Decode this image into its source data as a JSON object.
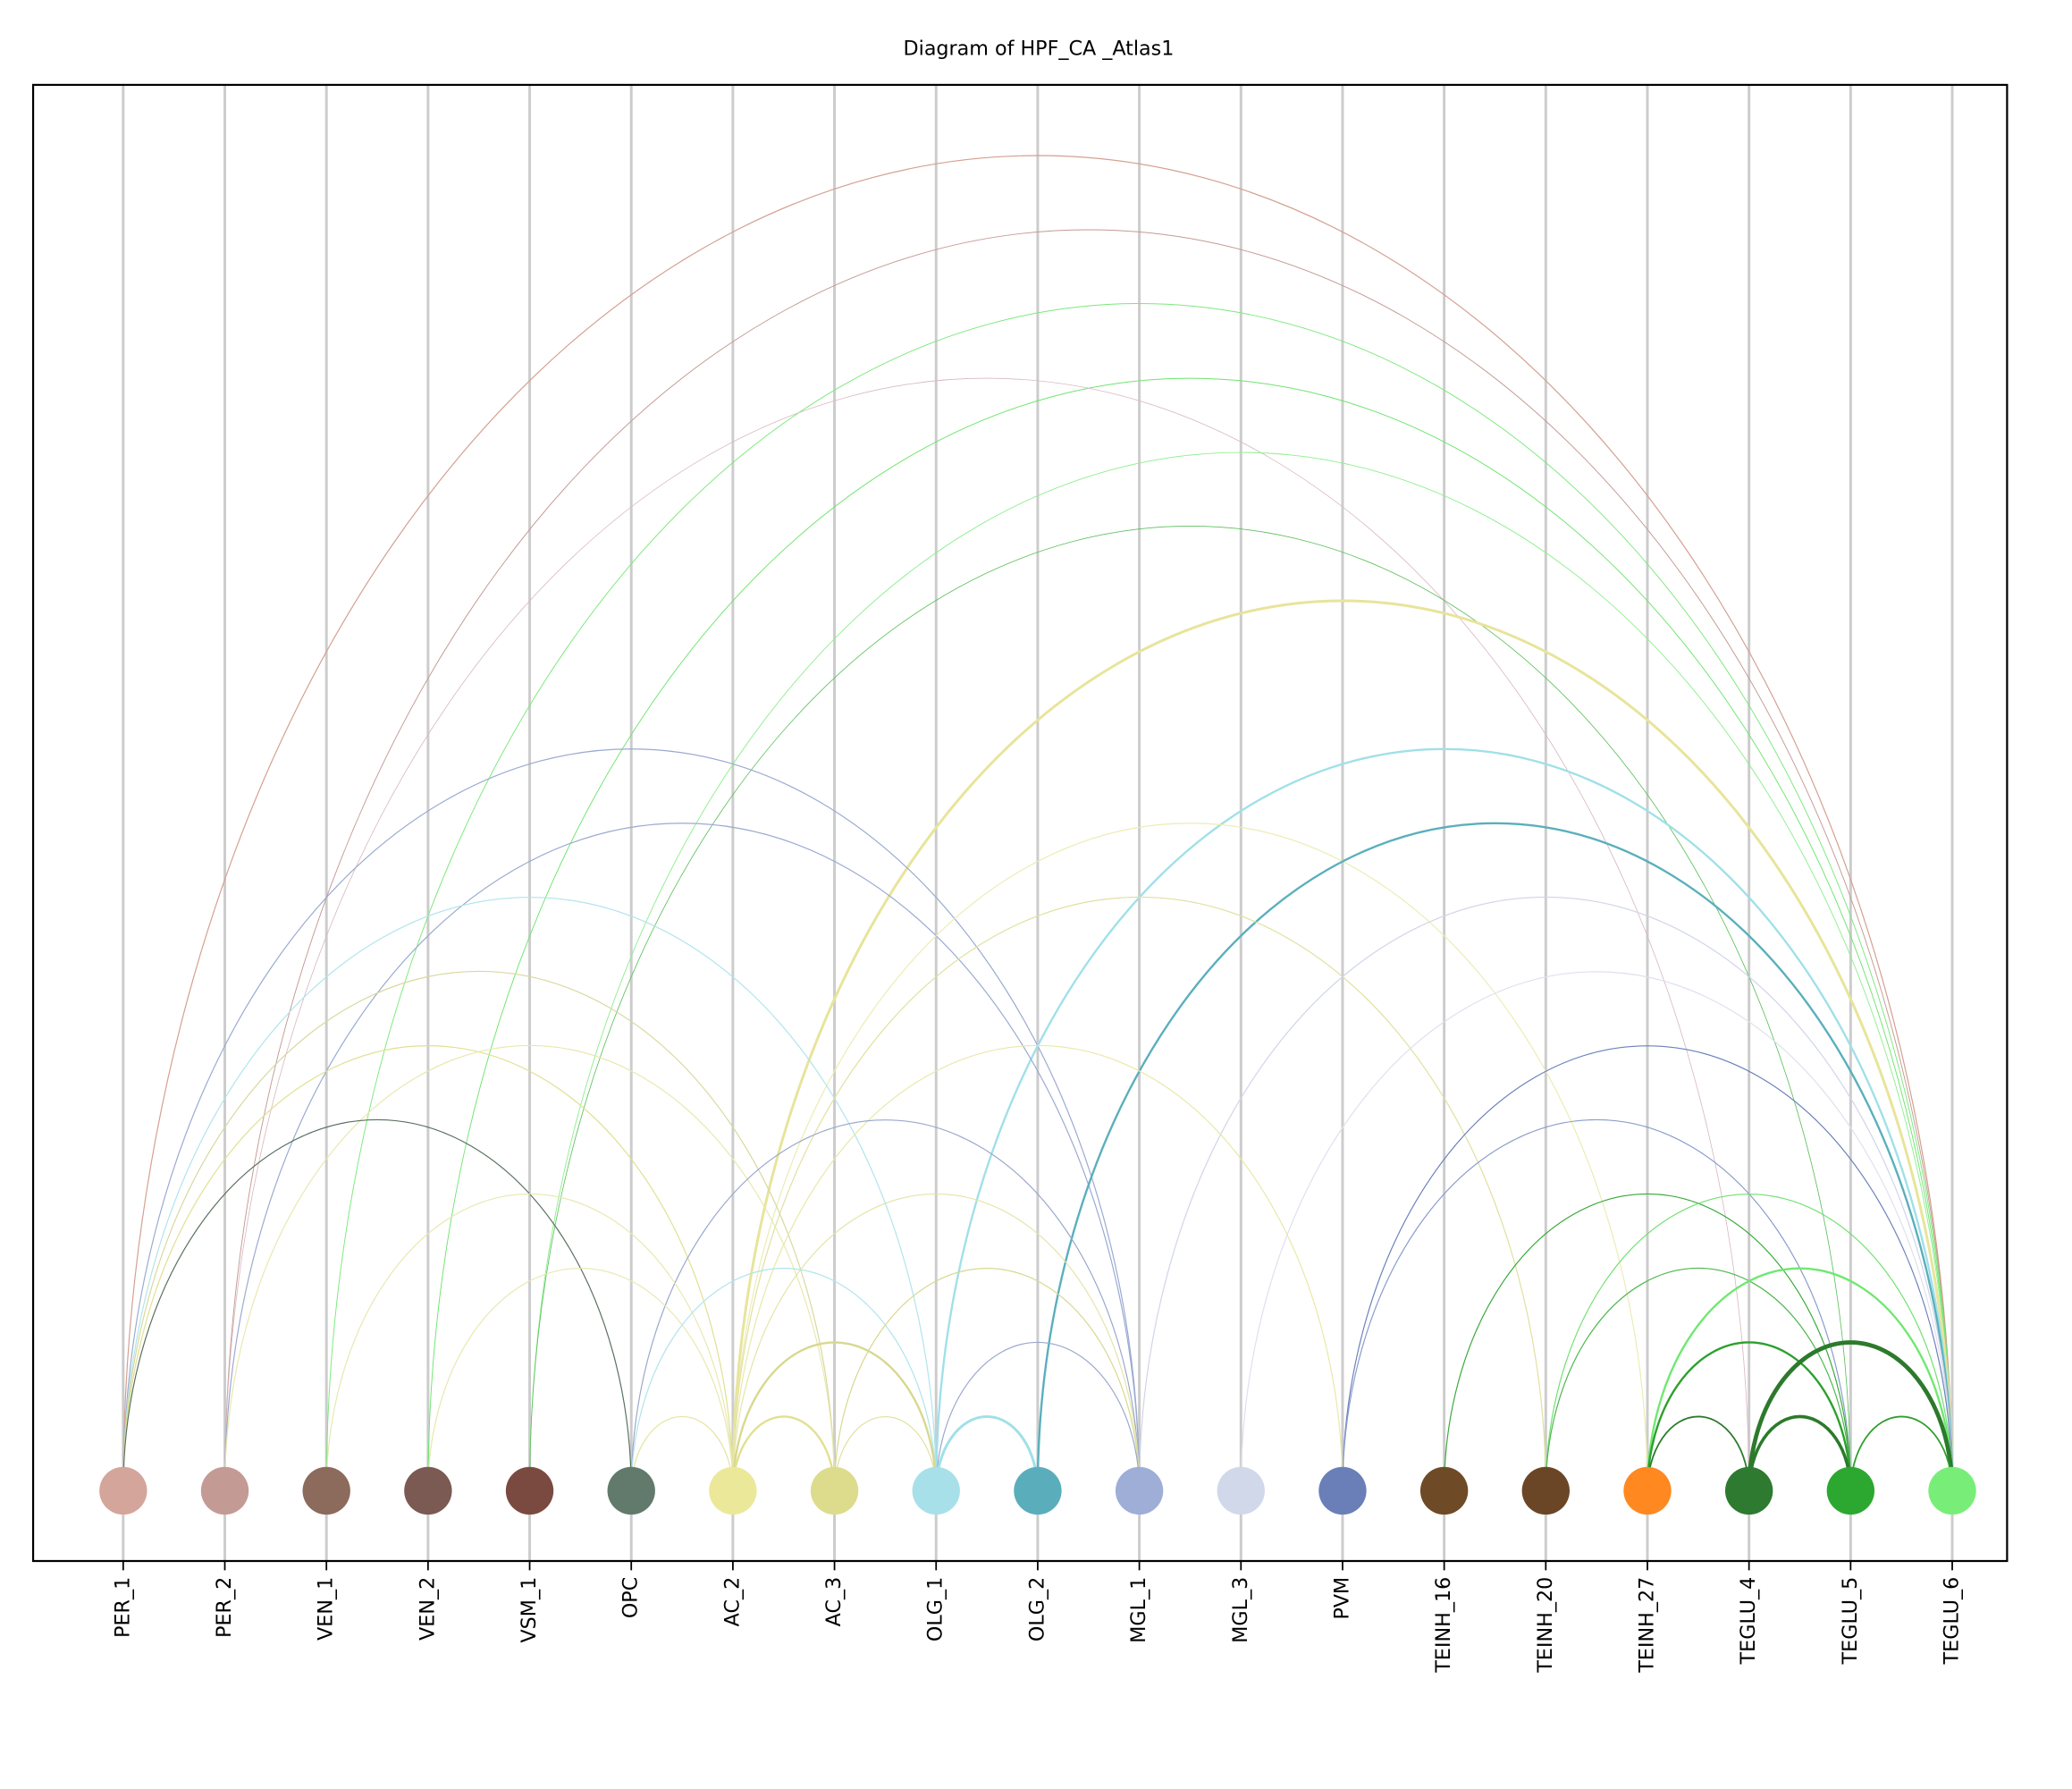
{
  "title": "Diagram of HPF_CA _Atlas1",
  "nodes": [
    {
      "label": "PER_1",
      "color": "#d4a59a"
    },
    {
      "label": "PER_2",
      "color": "#c49a94"
    },
    {
      "label": "VEN_1",
      "color": "#8c6a5c"
    },
    {
      "label": "VEN_2",
      "color": "#7a5a52"
    },
    {
      "label": "VSM_1",
      "color": "#7a4a40"
    },
    {
      "label": "OPC",
      "color": "#627a6c"
    },
    {
      "label": "AC_2",
      "color": "#ece89a"
    },
    {
      "label": "AC_3",
      "color": "#dcdc8c"
    },
    {
      "label": "OLG_1",
      "color": "#a8e0ea"
    },
    {
      "label": "OLG_2",
      "color": "#5aaebc"
    },
    {
      "label": "MGL_1",
      "color": "#9eaed6"
    },
    {
      "label": "MGL_3",
      "color": "#d0d8ea"
    },
    {
      "label": "PVM",
      "color": "#6a7eb8"
    },
    {
      "label": "TEINH_16",
      "color": "#6e4a26"
    },
    {
      "label": "TEINH_20",
      "color": "#6a4626"
    },
    {
      "label": "TEINH_27",
      "color": "#ff8820"
    },
    {
      "label": "TEGLU_4",
      "color": "#2e7a30"
    },
    {
      "label": "TEGLU_5",
      "color": "#2ca830"
    },
    {
      "label": "TEGLU_6",
      "color": "#78ee78"
    }
  ],
  "edges": [
    {
      "source": 0,
      "target": 18,
      "color": "#d4a090",
      "weight": 1
    },
    {
      "source": 1,
      "target": 18,
      "color": "#c49a94",
      "weight": 0.8
    },
    {
      "source": 2,
      "target": 18,
      "color": "#7be87b",
      "weight": 0.8
    },
    {
      "source": 3,
      "target": 18,
      "color": "#6ee46e",
      "weight": 0.8
    },
    {
      "source": 1,
      "target": 16,
      "color": "#d9b8c0",
      "weight": 0.7
    },
    {
      "source": 4,
      "target": 18,
      "color": "#90ee90",
      "weight": 0.8
    },
    {
      "source": 4,
      "target": 17,
      "color": "#5cbf5c",
      "weight": 0.7
    },
    {
      "source": 6,
      "target": 18,
      "color": "#e8e49a",
      "weight": 2.5
    },
    {
      "source": 0,
      "target": 10,
      "color": "#9aaad0",
      "weight": 1
    },
    {
      "source": 8,
      "target": 18,
      "color": "#a0e0e8",
      "weight": 2
    },
    {
      "source": 1,
      "target": 10,
      "color": "#9aaad0",
      "weight": 1
    },
    {
      "source": 6,
      "target": 15,
      "color": "#ececb4",
      "weight": 1
    },
    {
      "source": 9,
      "target": 18,
      "color": "#5aafbc",
      "weight": 2
    },
    {
      "source": 0,
      "target": 8,
      "color": "#b0e4ec",
      "weight": 1
    },
    {
      "source": 6,
      "target": 14,
      "color": "#e0e0a0",
      "weight": 1
    },
    {
      "source": 10,
      "target": 18,
      "color": "#d0d4e8",
      "weight": 1
    },
    {
      "source": 0,
      "target": 7,
      "color": "#d8d8a0",
      "weight": 1
    },
    {
      "source": 11,
      "target": 18,
      "color": "#e0e0ee",
      "weight": 1
    },
    {
      "source": 0,
      "target": 6,
      "color": "#e0e090",
      "weight": 1
    },
    {
      "source": 1,
      "target": 7,
      "color": "#e8e8b0",
      "weight": 1
    },
    {
      "source": 6,
      "target": 12,
      "color": "#e8e8a8",
      "weight": 1
    },
    {
      "source": 12,
      "target": 18,
      "color": "#6a80b8",
      "weight": 1
    },
    {
      "source": 0,
      "target": 5,
      "color": "#5a7060",
      "weight": 1
    },
    {
      "source": 5,
      "target": 10,
      "color": "#9aa8cc",
      "weight": 1
    },
    {
      "source": 12,
      "target": 17,
      "color": "#8a9ccc",
      "weight": 1
    },
    {
      "source": 2,
      "target": 6,
      "color": "#e8e8b0",
      "weight": 1
    },
    {
      "source": 6,
      "target": 10,
      "color": "#e4e4a8",
      "weight": 1
    },
    {
      "source": 13,
      "target": 17,
      "color": "#3aa83a",
      "weight": 1
    },
    {
      "source": 14,
      "target": 18,
      "color": "#70e070",
      "weight": 1
    },
    {
      "source": 3,
      "target": 6,
      "color": "#e8e8b0",
      "weight": 1
    },
    {
      "source": 5,
      "target": 8,
      "color": "#b0e4ec",
      "weight": 1
    },
    {
      "source": 7,
      "target": 10,
      "color": "#d8d890",
      "weight": 1
    },
    {
      "source": 14,
      "target": 17,
      "color": "#4cb84c",
      "weight": 1
    },
    {
      "source": 15,
      "target": 18,
      "color": "#70e870",
      "weight": 2
    },
    {
      "source": 6,
      "target": 8,
      "color": "#d8d890",
      "weight": 2
    },
    {
      "source": 8,
      "target": 10,
      "color": "#9aa8cc",
      "weight": 1
    },
    {
      "source": 15,
      "target": 17,
      "color": "#2ca02c",
      "weight": 2
    },
    {
      "source": 16,
      "target": 18,
      "color": "#2c7a2c",
      "weight": 4
    },
    {
      "source": 5,
      "target": 6,
      "color": "#e4e4a0",
      "weight": 1
    },
    {
      "source": 6,
      "target": 7,
      "color": "#e0e090",
      "weight": 2
    },
    {
      "source": 7,
      "target": 8,
      "color": "#e0e0a0",
      "weight": 1
    },
    {
      "source": 8,
      "target": 9,
      "color": "#a0e0e8",
      "weight": 2.5
    },
    {
      "source": 15,
      "target": 16,
      "color": "#2c7a2c",
      "weight": 1.5
    },
    {
      "source": 16,
      "target": 17,
      "color": "#2c7a2c",
      "weight": 3
    },
    {
      "source": 17,
      "target": 18,
      "color": "#2ca02c",
      "weight": 1.5
    }
  ]
}
